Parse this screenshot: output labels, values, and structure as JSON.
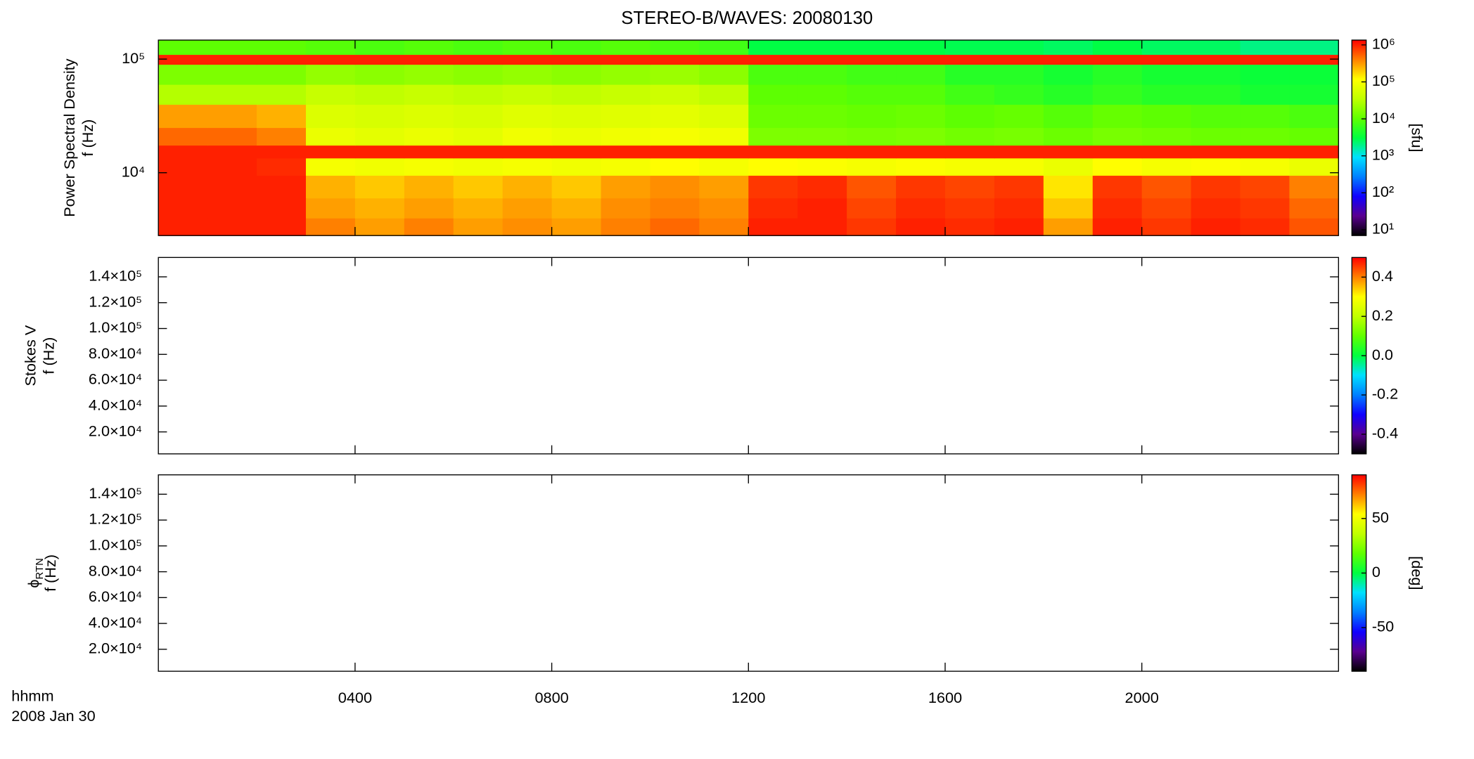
{
  "title": "STEREO-B/WAVES: 20080130",
  "colormap": [
    "#000000",
    "#5a0090",
    "#1000ff",
    "#0080ff",
    "#00e0ff",
    "#00ff40",
    "#60ff00",
    "#c0ff00",
    "#ffff00",
    "#ff8000",
    "#ff0000"
  ],
  "xaxis": {
    "xlim": [
      0,
      24
    ],
    "xticks": [
      {
        "value": 4,
        "label": "0400"
      },
      {
        "value": 8,
        "label": "0800"
      },
      {
        "value": 12,
        "label": "1200"
      },
      {
        "value": 16,
        "label": "1600"
      },
      {
        "value": 20,
        "label": "2000"
      }
    ],
    "xlabel": [
      "hhmm",
      "2008 Jan 30"
    ]
  },
  "chart_data": [
    {
      "type": "heatmap",
      "ylabel": [
        "Power Spectral Density",
        "f (Hz)"
      ],
      "yscale": "log",
      "ylim": [
        2800,
        147000
      ],
      "yticks": [
        {
          "value": 10000,
          "label": "10⁴"
        },
        {
          "value": 100000,
          "label": "10⁵"
        }
      ],
      "cscale": "log",
      "clim": [
        7,
        1350000
      ],
      "cticks": [
        {
          "value": 10,
          "label": "10¹"
        },
        {
          "value": 100,
          "label": "10²"
        },
        {
          "value": 1000,
          "label": "10³"
        },
        {
          "value": 10000,
          "label": "10⁴"
        },
        {
          "value": 100000,
          "label": "10⁵"
        },
        {
          "value": 1000000,
          "label": "10⁶"
        }
      ],
      "clabel": "[sfu]",
      "time_bins": [
        0,
        1,
        2,
        3,
        4,
        5,
        6,
        7,
        8,
        9,
        10,
        11,
        12,
        13,
        14,
        15,
        16,
        17,
        18,
        19,
        20,
        21,
        22,
        23,
        24
      ],
      "freq_bins": [
        2800,
        4000,
        6000,
        9500,
        13500,
        17500,
        25000,
        40000,
        60000,
        90000,
        110000,
        147000
      ],
      "z": [
        [
          1000000,
          1000000,
          1000000,
          400000,
          300000,
          400000,
          300000,
          350000,
          300000,
          400000,
          500000,
          400000,
          1000000,
          1000000,
          800000,
          1000000,
          900000,
          1000000,
          300000,
          1000000,
          800000,
          1000000,
          900000,
          600000
        ],
        [
          1000000,
          1000000,
          1000000,
          300000,
          250000,
          300000,
          250000,
          300000,
          250000,
          350000,
          400000,
          350000,
          900000,
          1000000,
          700000,
          900000,
          800000,
          900000,
          200000,
          900000,
          700000,
          900000,
          800000,
          500000
        ],
        [
          1000000,
          1000000,
          1000000,
          250000,
          200000,
          250000,
          200000,
          250000,
          200000,
          300000,
          350000,
          300000,
          800000,
          900000,
          600000,
          800000,
          700000,
          800000,
          150000,
          800000,
          600000,
          800000,
          700000,
          400000
        ],
        [
          1000000,
          1000000,
          900000,
          100000,
          90000,
          100000,
          90000,
          100000,
          90000,
          100000,
          120000,
          100000,
          120000,
          110000,
          100000,
          110000,
          100000,
          100000,
          80000,
          120000,
          100000,
          110000,
          100000,
          80000
        ],
        [
          1000000,
          1000000,
          1000000,
          1000000,
          1000000,
          1000000,
          1000000,
          1000000,
          1000000,
          1000000,
          1000000,
          1000000,
          1000000,
          1000000,
          1000000,
          1000000,
          1000000,
          1000000,
          1000000,
          1000000,
          1000000,
          1000000,
          1000000,
          1000000
        ],
        [
          500000,
          500000,
          400000,
          80000,
          70000,
          80000,
          70000,
          90000,
          80000,
          90000,
          100000,
          90000,
          15000,
          15000,
          14000,
          15000,
          13000,
          14000,
          12000,
          14000,
          13000,
          12000,
          12000,
          11000
        ],
        [
          300000,
          300000,
          250000,
          60000,
          55000,
          60000,
          55000,
          65000,
          60000,
          65000,
          70000,
          60000,
          12000,
          12000,
          11000,
          12000,
          10000,
          11000,
          9000,
          11000,
          10000,
          9000,
          9000,
          8000
        ],
        [
          30000,
          30000,
          30000,
          40000,
          35000,
          40000,
          35000,
          40000,
          35000,
          40000,
          45000,
          35000,
          10000,
          10000,
          9000,
          9000,
          7000,
          6000,
          5000,
          6000,
          5000,
          5000,
          4000,
          4000
        ],
        [
          15000,
          15000,
          15000,
          20000,
          18000,
          20000,
          18000,
          20000,
          18000,
          20000,
          22000,
          18000,
          8000,
          8000,
          7000,
          7000,
          5000,
          5000,
          4000,
          5000,
          4000,
          4000,
          3500,
          3500
        ],
        [
          1000000,
          1000000,
          1000000,
          1000000,
          1000000,
          1000000,
          1000000,
          1000000,
          1000000,
          1000000,
          1000000,
          1000000,
          1000000,
          1000000,
          1000000,
          1000000,
          1000000,
          1000000,
          1000000,
          1000000,
          1000000,
          1000000,
          1000000,
          1000000
        ],
        [
          10000,
          10000,
          10000,
          9000,
          8000,
          9000,
          8000,
          9000,
          8000,
          9000,
          8000,
          7000,
          3000,
          3000,
          3000,
          3000,
          2800,
          2800,
          2500,
          3000,
          2500,
          2500,
          2000,
          2000
        ]
      ]
    },
    {
      "type": "heatmap",
      "ylabel": [
        "Stokes V",
        "f (Hz)"
      ],
      "yscale": "linear",
      "ylim": [
        3000,
        155000
      ],
      "yticks": [
        {
          "value": 20000,
          "label": "2.0×10⁴"
        },
        {
          "value": 40000,
          "label": "4.0×10⁴"
        },
        {
          "value": 60000,
          "label": "6.0×10⁴"
        },
        {
          "value": 80000,
          "label": "8.0×10⁴"
        },
        {
          "value": 100000,
          "label": "1.0×10⁵"
        },
        {
          "value": 120000,
          "label": "1.2×10⁵"
        },
        {
          "value": 140000,
          "label": "1.4×10⁵"
        }
      ],
      "cscale": "linear",
      "clim": [
        -0.5,
        0.5
      ],
      "cticks": [
        -0.4,
        -0.2,
        {
          "value": 0,
          "label": "0.0"
        },
        0.2,
        0.4
      ]
    },
    {
      "type": "heatmap",
      "ylabel": [
        [
          "ϕ",
          "RTN"
        ],
        "f (Hz)"
      ],
      "yscale": "linear",
      "ylim": [
        3000,
        155000
      ],
      "yticks": [
        {
          "value": 20000,
          "label": "2.0×10⁴"
        },
        {
          "value": 40000,
          "label": "4.0×10⁴"
        },
        {
          "value": 60000,
          "label": "6.0×10⁴"
        },
        {
          "value": 80000,
          "label": "8.0×10⁴"
        },
        {
          "value": 100000,
          "label": "1.0×10⁵"
        },
        {
          "value": 120000,
          "label": "1.2×10⁵"
        },
        {
          "value": 140000,
          "label": "1.4×10⁵"
        }
      ],
      "cscale": "linear",
      "clim": [
        -90,
        90
      ],
      "cticks": [
        -50,
        0,
        50
      ],
      "clabel": "[deg]"
    }
  ]
}
